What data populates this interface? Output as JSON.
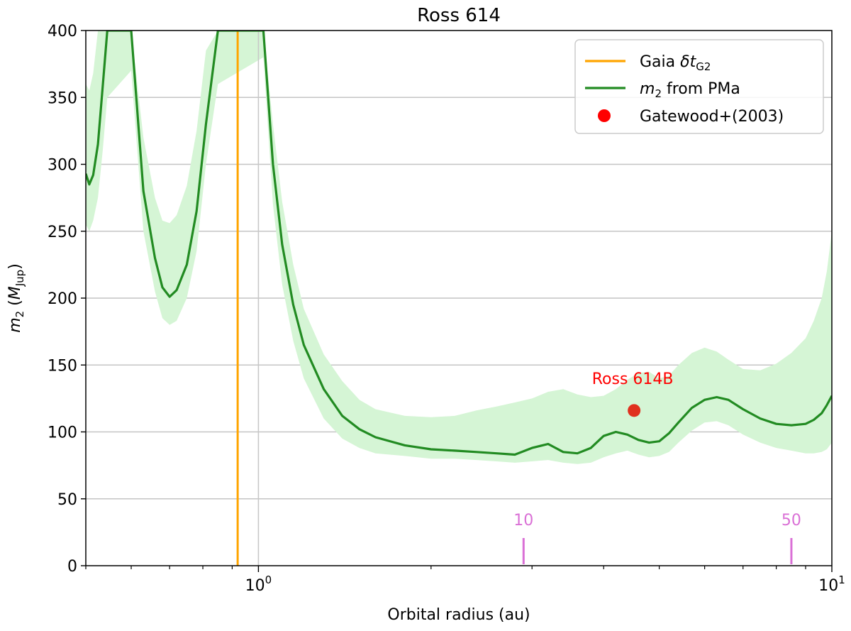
{
  "chart_data": {
    "type": "line",
    "title": "Ross 614",
    "xlabel": "Orbital radius (au)",
    "ylabel": "m2 (MJup)",
    "x_scale": "log",
    "xlim": [
      0.5,
      10
    ],
    "ylim": [
      0,
      400
    ],
    "y_ticks": [
      0,
      50,
      100,
      150,
      200,
      250,
      300,
      350,
      400
    ],
    "x_tick_labels": [
      {
        "value": 1,
        "label": "10",
        "exp": "0"
      },
      {
        "value": 10,
        "label": "10",
        "exp": "1"
      }
    ],
    "grid": "y-major",
    "legend_position": "top-right",
    "legend": [
      {
        "label_main": "Gaia δt",
        "label_sub": "G2",
        "color": "#ffa500",
        "kind": "line"
      },
      {
        "label_main": "m",
        "label_sub": "2",
        "label_tail": " from PMa",
        "color": "#228b22",
        "kind": "line"
      },
      {
        "label_main": "Gatewood+(2003)",
        "color": "#ff0000",
        "kind": "marker"
      }
    ],
    "vline_gaia": {
      "x": 0.92,
      "color": "#ffa500"
    },
    "vline_ref": {
      "x": 1.0,
      "color": "#c8c8c8"
    },
    "series": [
      {
        "name": "m2 from PMa",
        "color": "#228b22",
        "band_color": "#d5f5d5",
        "x": [
          0.5,
          0.507,
          0.515,
          0.525,
          0.535,
          0.545,
          0.6,
          0.63,
          0.66,
          0.68,
          0.7,
          0.72,
          0.75,
          0.78,
          0.81,
          0.85,
          1.02,
          1.06,
          1.1,
          1.15,
          1.2,
          1.3,
          1.4,
          1.5,
          1.6,
          1.8,
          2.0,
          2.2,
          2.4,
          2.6,
          2.8,
          3.0,
          3.2,
          3.4,
          3.6,
          3.8,
          4.0,
          4.2,
          4.4,
          4.6,
          4.8,
          5.0,
          5.2,
          5.4,
          5.7,
          6.0,
          6.3,
          6.6,
          7.0,
          7.5,
          8.0,
          8.5,
          9.0,
          9.3,
          9.6,
          9.8,
          10.0
        ],
        "y": [
          293,
          285,
          292,
          315,
          358,
          400,
          400,
          280,
          230,
          208,
          201,
          206,
          225,
          265,
          330,
          400,
          400,
          300,
          240,
          195,
          165,
          132,
          112,
          102,
          96,
          90,
          87,
          86,
          85,
          84,
          83,
          88,
          91,
          85,
          84,
          88,
          97,
          100,
          98,
          94,
          92,
          93,
          99,
          107,
          118,
          124,
          126,
          124,
          117,
          110,
          106,
          105,
          106,
          109,
          114,
          120,
          127
        ],
        "y_upper": [
          360,
          355,
          368,
          400,
          400,
          400,
          400,
          320,
          275,
          258,
          256,
          262,
          284,
          325,
          385,
          400,
          400,
          330,
          272,
          225,
          192,
          158,
          138,
          124,
          117,
          112,
          111,
          112,
          116,
          119,
          122,
          125,
          130,
          132,
          128,
          126,
          127,
          132,
          139,
          144,
          145,
          140,
          142,
          150,
          159,
          163,
          160,
          154,
          147,
          146,
          151,
          159,
          170,
          183,
          200,
          220,
          250
        ],
        "y_lower": [
          255,
          250,
          258,
          275,
          310,
          350,
          370,
          250,
          205,
          185,
          180,
          183,
          200,
          235,
          300,
          360,
          380,
          270,
          210,
          168,
          140,
          110,
          95,
          88,
          84,
          82,
          80,
          80,
          79,
          78,
          77,
          78,
          79,
          77,
          76,
          77,
          81,
          84,
          86,
          83,
          81,
          82,
          85,
          92,
          101,
          107,
          108,
          105,
          98,
          92,
          88,
          86,
          84,
          84,
          85,
          87,
          92
        ]
      }
    ],
    "point": {
      "x": 4.52,
      "y": 116,
      "label": "Ross 614B",
      "color": "#ff0000"
    },
    "period_markers": {
      "color": "#da70d6",
      "items": [
        {
          "x": 2.9,
          "label": "10"
        },
        {
          "x": 8.5,
          "label": "50"
        }
      ]
    }
  }
}
